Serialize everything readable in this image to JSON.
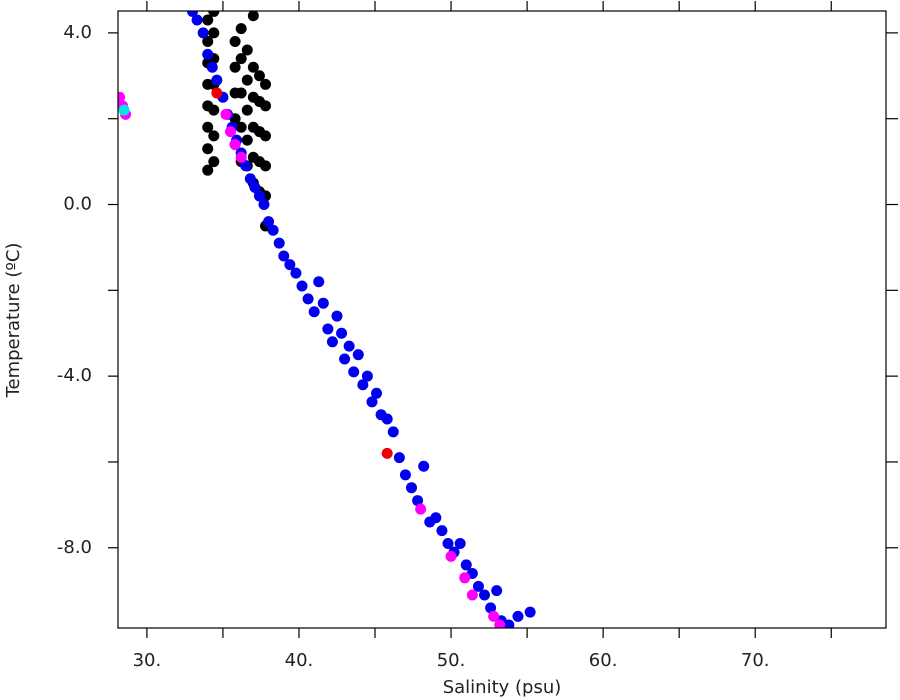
{
  "chart_data": {
    "type": "scatter",
    "x_label": "Salinity (psu)",
    "y_label": "Temperature (ºC)",
    "xlim": [
      28.1,
      78.6
    ],
    "ylim": [
      -9.87,
      4.51
    ],
    "xticks": [
      {
        "value": 30,
        "label": "30."
      },
      {
        "value": 40,
        "label": "40."
      },
      {
        "value": 50,
        "label": "50."
      },
      {
        "value": 60,
        "label": "60."
      },
      {
        "value": 70,
        "label": "70."
      }
    ],
    "xminor": [
      35,
      45,
      55,
      65,
      75
    ],
    "yticks": [
      {
        "value": 4,
        "label": "4.0"
      },
      {
        "value": 0,
        "label": "0.0"
      },
      {
        "value": -4,
        "label": "-4.0"
      },
      {
        "value": -8,
        "label": "-8.0"
      }
    ],
    "yminor": [
      2,
      -2,
      -6
    ],
    "series": [
      {
        "color": "#000000",
        "x": [
          34.0,
          34.0,
          34.0,
          34.0,
          34.0,
          34.0,
          34.0,
          34.0,
          34.4,
          34.4,
          34.4,
          34.4,
          34.4,
          34.4,
          34.4,
          35.8,
          35.8,
          35.8,
          35.8,
          35.8,
          36.2,
          36.2,
          36.2,
          36.2,
          36.2,
          36.6,
          36.6,
          36.6,
          36.6,
          36.6,
          37.0,
          37.0,
          37.0,
          37.0,
          37.0,
          37.0,
          37.4,
          37.4,
          37.4,
          37.4,
          37.4,
          37.8,
          37.8,
          37.8,
          37.8,
          37.8,
          37.8
        ],
        "values": [
          0.8,
          1.3,
          1.8,
          2.3,
          2.8,
          3.3,
          3.8,
          4.3,
          1.0,
          1.6,
          2.2,
          2.8,
          3.4,
          4.0,
          4.5,
          1.4,
          2.0,
          2.6,
          3.2,
          3.8,
          1.0,
          1.8,
          2.6,
          3.4,
          4.1,
          0.9,
          1.5,
          2.2,
          2.9,
          3.6,
          0.5,
          1.1,
          1.8,
          2.5,
          3.2,
          4.4,
          0.3,
          1.0,
          1.7,
          2.4,
          3.0,
          -0.5,
          0.2,
          0.9,
          1.6,
          2.3,
          2.8
        ]
      },
      {
        "color": "#0000ee",
        "x": [
          33.0,
          33.3,
          33.7,
          34.0,
          34.3,
          34.6,
          35.0,
          35.3,
          35.6,
          35.9,
          36.2,
          36.5,
          36.8,
          37.1,
          37.4,
          37.7,
          38.0,
          38.3,
          38.7,
          39.0,
          39.4,
          39.8,
          40.2,
          40.6,
          41.0,
          41.3,
          41.6,
          41.9,
          42.2,
          42.5,
          42.8,
          43.0,
          43.3,
          43.6,
          43.9,
          44.2,
          44.5,
          44.8,
          45.1,
          45.4,
          45.8,
          46.2,
          46.6,
          47.0,
          47.4,
          47.8,
          48.2,
          48.6,
          49.0,
          49.4,
          49.8,
          50.2,
          50.6,
          51.0,
          51.4,
          51.8,
          52.2,
          52.6,
          53.0,
          53.3,
          53.8,
          54.4,
          55.2
        ],
        "values": [
          4.5,
          4.3,
          4.0,
          3.5,
          3.2,
          2.9,
          2.5,
          2.1,
          1.8,
          1.5,
          1.2,
          0.9,
          0.6,
          0.4,
          0.2,
          0.0,
          -0.4,
          -0.6,
          -0.9,
          -1.2,
          -1.4,
          -1.6,
          -1.9,
          -2.2,
          -2.5,
          -1.8,
          -2.3,
          -2.9,
          -3.2,
          -2.6,
          -3.0,
          -3.6,
          -3.3,
          -3.9,
          -3.5,
          -4.2,
          -4.0,
          -4.6,
          -4.4,
          -4.9,
          -5.0,
          -5.3,
          -5.9,
          -6.3,
          -6.6,
          -6.9,
          -6.1,
          -7.4,
          -7.3,
          -7.6,
          -7.9,
          -8.1,
          -7.9,
          -8.4,
          -8.6,
          -8.9,
          -9.1,
          -9.4,
          -9.0,
          -9.7,
          -9.8,
          -9.6,
          -9.5
        ]
      },
      {
        "color": "#ff00ff",
        "x": [
          28.2,
          28.4,
          28.6,
          35.2,
          35.5,
          35.8,
          36.2,
          48.0,
          50.0,
          50.9,
          51.4,
          52.8,
          53.2
        ],
        "values": [
          2.5,
          2.3,
          2.1,
          2.1,
          1.7,
          1.4,
          1.1,
          -7.1,
          -8.2,
          -8.7,
          -9.1,
          -9.6,
          -9.8
        ]
      },
      {
        "color": "#ee0000",
        "x": [
          34.6,
          45.8
        ],
        "values": [
          2.6,
          -5.8
        ]
      },
      {
        "color": "#00e5e5",
        "x": [
          28.5
        ],
        "values": [
          2.2
        ]
      }
    ]
  }
}
